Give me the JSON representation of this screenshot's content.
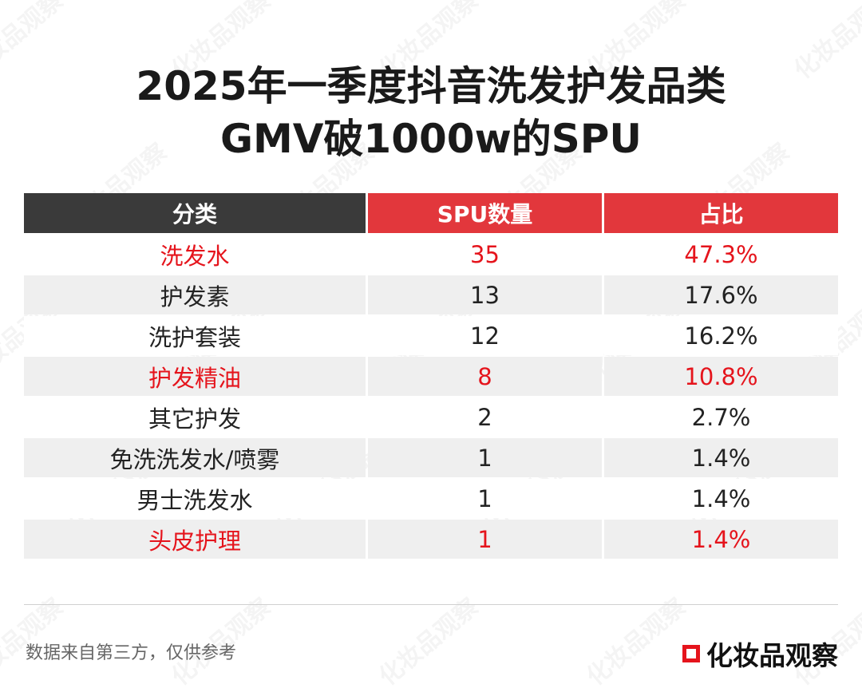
{
  "header": {
    "title_lines": [
      "2025年一季度抖音洗发护发品类",
      "GMV破1000w的SPU"
    ]
  },
  "table": {
    "columns": [
      "分类",
      "SPU数量",
      "占比"
    ],
    "column_colors": [
      "#3a3a3a",
      "#e2373c",
      "#e2373c"
    ],
    "rows": [
      [
        "洗发水",
        "35",
        "47.3%"
      ],
      [
        "护发素",
        "13",
        "17.6%"
      ],
      [
        "洗护套装",
        "12",
        "16.2%"
      ],
      [
        "护发精油",
        "8",
        "10.8%"
      ],
      [
        "其它护发",
        "2",
        "2.7%"
      ],
      [
        "免洗洗发水/喷雾",
        "1",
        "1.4%"
      ],
      [
        "男士洗发水",
        "1",
        "1.4%"
      ],
      [
        "头皮护理",
        "1",
        "1.4%"
      ]
    ],
    "row_colors": [
      "#e5141c",
      "#222222",
      "#222222",
      "#e5141c",
      "#222222",
      "#222222",
      "#222222",
      "#e5141c"
    ]
  },
  "footer": {
    "note": "数据来自第三方，仅供参考",
    "brand": "化妆品观察"
  },
  "watermark": "化妆品观察"
}
